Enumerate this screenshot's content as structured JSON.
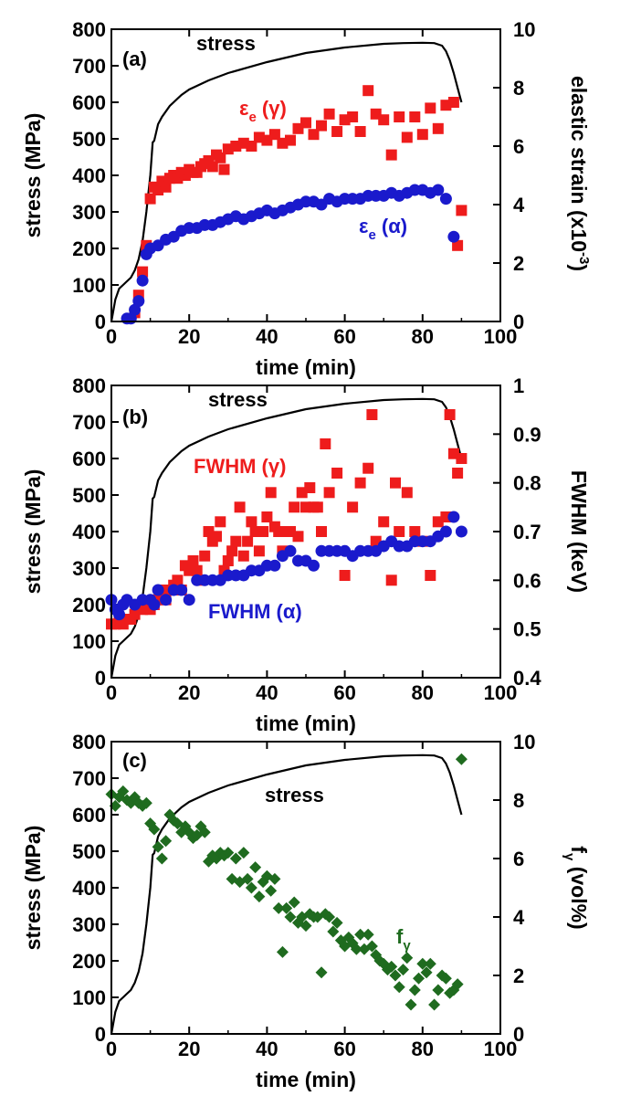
{
  "colors": {
    "stress": "#000000",
    "gamma": "#ee1c1c",
    "alpha": "#1a1acc",
    "fraction": "#1f6b1f",
    "axis": "#000000"
  },
  "chart_data": [
    {
      "type": "scatter",
      "panel_label": "(a)",
      "xlabel": "time (min)",
      "ylabel": "stress (MPa)",
      "y2label_main": "elastic strain (x10",
      "y2label_sup": "-3",
      "y2label_end": ")",
      "xlim": [
        0,
        100
      ],
      "ylim": [
        0,
        800
      ],
      "y2lim": [
        0,
        10
      ],
      "xticks": [
        "0",
        "20",
        "40",
        "60",
        "80",
        "100"
      ],
      "yticks": [
        "0",
        "100",
        "200",
        "300",
        "400",
        "500",
        "600",
        "700",
        "800"
      ],
      "y2ticks": [
        "0",
        "2",
        "4",
        "6",
        "8",
        "10"
      ],
      "annotations": {
        "stress": "stress",
        "gamma_symbol": "ε",
        "gamma_sub": "e",
        "gamma_phase": " (γ)",
        "alpha_symbol": "ε",
        "alpha_sub": "e",
        "alpha_phase": " (α)"
      },
      "series": [
        {
          "name": "stress",
          "axis": "left",
          "style": "line",
          "x": [
            0,
            1,
            2,
            3,
            4,
            5,
            6,
            7,
            8,
            9,
            10,
            10.6,
            11,
            12,
            13,
            15,
            18,
            20,
            25,
            30,
            40,
            50,
            60,
            70,
            75,
            80,
            83,
            85,
            86,
            87,
            88,
            89,
            90
          ],
          "y": [
            0,
            60,
            90,
            100,
            110,
            120,
            140,
            170,
            220,
            300,
            400,
            490,
            495,
            540,
            560,
            590,
            620,
            635,
            660,
            680,
            710,
            735,
            750,
            760,
            762,
            763,
            762,
            755,
            740,
            715,
            680,
            640,
            600
          ]
        },
        {
          "name": "ε e (γ)",
          "axis": "right",
          "style": "square",
          "x": [
            6,
            7,
            8,
            9,
            10,
            11,
            12,
            13,
            14,
            15,
            16,
            17,
            18,
            19,
            20,
            21,
            22,
            23,
            24,
            25,
            26,
            27,
            28,
            29,
            30,
            32,
            34,
            36,
            38,
            40,
            42,
            44,
            46,
            48,
            50,
            52,
            54,
            56,
            58,
            60,
            62,
            64,
            66,
            68,
            70,
            72,
            74,
            76,
            78,
            80,
            82,
            84,
            86,
            88,
            89,
            90
          ],
          "y": [
            0.3,
            0.9,
            1.7,
            2.6,
            4.2,
            4.6,
            4.5,
            4.8,
            4.6,
            4.9,
            5.0,
            4.9,
            5.1,
            5.0,
            5.2,
            5.1,
            5.1,
            5.3,
            5.4,
            5.5,
            5.3,
            5.7,
            5.6,
            5.2,
            5.9,
            6.0,
            6.1,
            6.0,
            6.3,
            6.2,
            6.4,
            6.1,
            6.2,
            6.6,
            6.8,
            6.4,
            6.7,
            7.1,
            6.5,
            6.9,
            7.0,
            6.5,
            7.9,
            7.1,
            6.9,
            5.7,
            7.0,
            6.3,
            7.0,
            6.4,
            7.3,
            6.6,
            7.4,
            7.5,
            2.6,
            3.8
          ]
        },
        {
          "name": "ε e (α)",
          "axis": "right",
          "style": "circle",
          "x": [
            4,
            5,
            6,
            7,
            8,
            9,
            10,
            12,
            14,
            16,
            18,
            20,
            22,
            24,
            26,
            28,
            30,
            32,
            34,
            36,
            38,
            40,
            42,
            44,
            46,
            48,
            50,
            52,
            54,
            56,
            58,
            60,
            62,
            64,
            66,
            68,
            70,
            72,
            74,
            76,
            78,
            80,
            82,
            84,
            86,
            88
          ],
          "y": [
            0.1,
            0.1,
            0.4,
            0.7,
            1.4,
            2.3,
            2.5,
            2.6,
            2.8,
            2.9,
            3.1,
            3.2,
            3.2,
            3.3,
            3.3,
            3.4,
            3.5,
            3.6,
            3.5,
            3.6,
            3.7,
            3.8,
            3.7,
            3.8,
            3.9,
            4.0,
            4.1,
            4.1,
            4.0,
            4.2,
            4.1,
            4.2,
            4.2,
            4.2,
            4.3,
            4.3,
            4.3,
            4.4,
            4.3,
            4.4,
            4.5,
            4.5,
            4.4,
            4.5,
            4.2,
            2.9
          ]
        }
      ]
    },
    {
      "type": "scatter",
      "panel_label": "(b)",
      "xlabel": "time (min)",
      "ylabel": "stress (MPa)",
      "y2label_main": "FWHM (keV)",
      "xlim": [
        0,
        100
      ],
      "ylim": [
        0,
        800
      ],
      "y2lim": [
        0.4,
        1.0
      ],
      "xticks": [
        "0",
        "20",
        "40",
        "60",
        "80",
        "100"
      ],
      "yticks": [
        "0",
        "100",
        "200",
        "300",
        "400",
        "500",
        "600",
        "700",
        "800"
      ],
      "y2ticks": [
        "0.4",
        "0.5",
        "0.6",
        "0.7",
        "0.8",
        "0.9",
        "1"
      ],
      "annotations": {
        "stress": "stress",
        "gamma": "FWHM (γ)",
        "alpha": "FWHM (α)"
      },
      "series": [
        {
          "name": "stress",
          "axis": "left",
          "style": "line",
          "x": [
            0,
            1,
            2,
            3,
            4,
            5,
            6,
            7,
            8,
            9,
            10,
            10.6,
            11,
            12,
            13,
            15,
            18,
            20,
            25,
            30,
            40,
            50,
            60,
            70,
            75,
            80,
            83,
            85,
            86,
            87,
            88,
            89,
            90
          ],
          "y": [
            0,
            60,
            90,
            100,
            110,
            120,
            140,
            170,
            220,
            300,
            400,
            490,
            495,
            540,
            560,
            590,
            620,
            635,
            660,
            680,
            710,
            735,
            750,
            760,
            762,
            763,
            762,
            755,
            740,
            715,
            680,
            640,
            600
          ]
        },
        {
          "name": "FWHM (γ)",
          "axis": "right",
          "style": "square",
          "x": [
            0,
            1,
            2,
            3,
            4,
            5,
            6,
            7,
            8,
            9,
            10,
            11,
            12,
            13,
            14,
            15,
            16,
            17,
            18,
            19,
            20,
            21,
            22,
            23,
            24,
            25,
            26,
            27,
            28,
            29,
            30,
            31,
            32,
            33,
            34,
            35,
            36,
            37,
            38,
            39,
            40,
            41,
            42,
            43,
            44,
            45,
            46,
            47,
            48,
            49,
            50,
            51,
            52,
            53,
            54,
            55,
            56,
            58,
            60,
            62,
            64,
            66,
            67,
            68,
            70,
            72,
            73,
            74,
            76,
            78,
            80,
            82,
            84,
            86,
            87,
            88,
            89,
            90
          ],
          "y": [
            0.51,
            0.51,
            0.52,
            0.51,
            0.52,
            0.52,
            0.53,
            0.55,
            0.54,
            0.55,
            0.54,
            0.55,
            0.56,
            0.58,
            0.56,
            0.58,
            0.59,
            0.6,
            0.58,
            0.63,
            0.62,
            0.64,
            0.62,
            0.6,
            0.65,
            0.7,
            0.68,
            0.69,
            0.72,
            0.62,
            0.64,
            0.66,
            0.68,
            0.75,
            0.65,
            0.68,
            0.72,
            0.7,
            0.66,
            0.7,
            0.73,
            0.78,
            0.71,
            0.7,
            0.66,
            0.7,
            0.7,
            0.75,
            0.69,
            0.78,
            0.75,
            0.79,
            0.75,
            0.75,
            0.7,
            0.88,
            0.78,
            0.82,
            0.61,
            0.75,
            0.8,
            0.83,
            0.94,
            0.68,
            0.72,
            0.6,
            0.8,
            0.7,
            0.78,
            0.7,
            0.68,
            0.61,
            0.72,
            0.73,
            0.94,
            0.86,
            0.82,
            0.85
          ]
        },
        {
          "name": "FWHM (α)",
          "axis": "right",
          "style": "circle",
          "x": [
            0,
            1,
            2,
            3,
            4,
            6,
            8,
            10,
            11,
            12,
            14,
            16,
            18,
            20,
            22,
            24,
            26,
            28,
            30,
            32,
            34,
            36,
            38,
            40,
            42,
            44,
            46,
            48,
            50,
            52,
            54,
            56,
            58,
            60,
            62,
            64,
            66,
            68,
            70,
            72,
            74,
            76,
            78,
            80,
            82,
            84,
            86,
            88,
            90
          ],
          "y": [
            0.56,
            0.54,
            0.53,
            0.55,
            0.56,
            0.55,
            0.56,
            0.56,
            0.55,
            0.58,
            0.56,
            0.58,
            0.58,
            0.56,
            0.6,
            0.6,
            0.6,
            0.6,
            0.61,
            0.61,
            0.61,
            0.62,
            0.62,
            0.63,
            0.63,
            0.65,
            0.66,
            0.64,
            0.64,
            0.63,
            0.66,
            0.66,
            0.66,
            0.66,
            0.65,
            0.66,
            0.66,
            0.66,
            0.67,
            0.68,
            0.67,
            0.67,
            0.68,
            0.68,
            0.68,
            0.69,
            0.7,
            0.73,
            0.7
          ]
        }
      ]
    },
    {
      "type": "scatter",
      "panel_label": "(c)",
      "xlabel": "time (min)",
      "ylabel": "stress (MPa)",
      "y2label_main": "f",
      "y2label_sub": "γ",
      "y2label_end": " (vol%)",
      "xlim": [
        0,
        100
      ],
      "ylim": [
        0,
        800
      ],
      "y2lim": [
        0,
        10
      ],
      "xticks": [
        "0",
        "20",
        "40",
        "60",
        "80",
        "100"
      ],
      "yticks": [
        "0",
        "100",
        "200",
        "300",
        "400",
        "500",
        "600",
        "700",
        "800"
      ],
      "y2ticks": [
        "0",
        "2",
        "4",
        "6",
        "8",
        "10"
      ],
      "annotations": {
        "stress": "stress",
        "fraction_main": "f",
        "fraction_sub": "γ"
      },
      "series": [
        {
          "name": "stress",
          "axis": "left",
          "style": "line",
          "x": [
            0,
            1,
            2,
            3,
            4,
            5,
            6,
            7,
            8,
            9,
            10,
            10.6,
            11,
            12,
            13,
            15,
            18,
            20,
            25,
            30,
            40,
            50,
            60,
            70,
            75,
            80,
            83,
            85,
            86,
            87,
            88,
            89,
            90
          ],
          "y": [
            0,
            60,
            90,
            100,
            110,
            120,
            140,
            170,
            220,
            300,
            400,
            490,
            495,
            540,
            560,
            590,
            620,
            635,
            660,
            680,
            710,
            735,
            750,
            760,
            762,
            763,
            762,
            755,
            740,
            715,
            680,
            640,
            600
          ]
        },
        {
          "name": "f γ",
          "axis": "right",
          "style": "diamond",
          "x": [
            0,
            1,
            2,
            3,
            4,
            5,
            6,
            7,
            8,
            9,
            10,
            11,
            12,
            13,
            14,
            15,
            16,
            17,
            18,
            19,
            20,
            21,
            22,
            23,
            24,
            25,
            26,
            27,
            28,
            29,
            30,
            31,
            32,
            33,
            34,
            35,
            36,
            37,
            38,
            39,
            40,
            41,
            42,
            43,
            44,
            45,
            46,
            47,
            48,
            49,
            50,
            51,
            52,
            53,
            54,
            55,
            56,
            57,
            58,
            59,
            60,
            61,
            62,
            63,
            64,
            65,
            66,
            67,
            68,
            69,
            70,
            71,
            72,
            73,
            74,
            75,
            76,
            77,
            78,
            79,
            80,
            81,
            82,
            83,
            84,
            85,
            86,
            87,
            88,
            89,
            90
          ],
          "y": [
            8.2,
            7.8,
            8.1,
            8.3,
            8.0,
            7.9,
            8.1,
            7.9,
            7.8,
            7.9,
            7.2,
            7.0,
            6.4,
            6.0,
            6.6,
            7.5,
            7.3,
            7.2,
            6.9,
            7.1,
            6.9,
            6.7,
            6.8,
            7.1,
            6.9,
            5.9,
            6.1,
            6.0,
            6.2,
            6.1,
            6.2,
            5.3,
            6.0,
            5.2,
            6.2,
            5.3,
            5.0,
            5.7,
            4.7,
            5.2,
            5.4,
            4.9,
            5.3,
            4.3,
            2.8,
            4.3,
            4.0,
            4.5,
            3.8,
            4.0,
            3.7,
            4.1,
            4.0,
            4.0,
            2.1,
            4.1,
            4.0,
            3.5,
            3.8,
            3.2,
            3.0,
            3.3,
            3.1,
            2.9,
            3.4,
            2.9,
            3.4,
            3.0,
            2.7,
            2.5,
            2.4,
            2.2,
            2.3,
            2.0,
            1.6,
            2.2,
            2.6,
            1.0,
            1.5,
            1.9,
            2.4,
            2.1,
            2.4,
            1.0,
            1.5,
            2.0,
            1.9,
            1.4,
            1.5,
            1.7,
            9.4
          ]
        }
      ]
    }
  ]
}
